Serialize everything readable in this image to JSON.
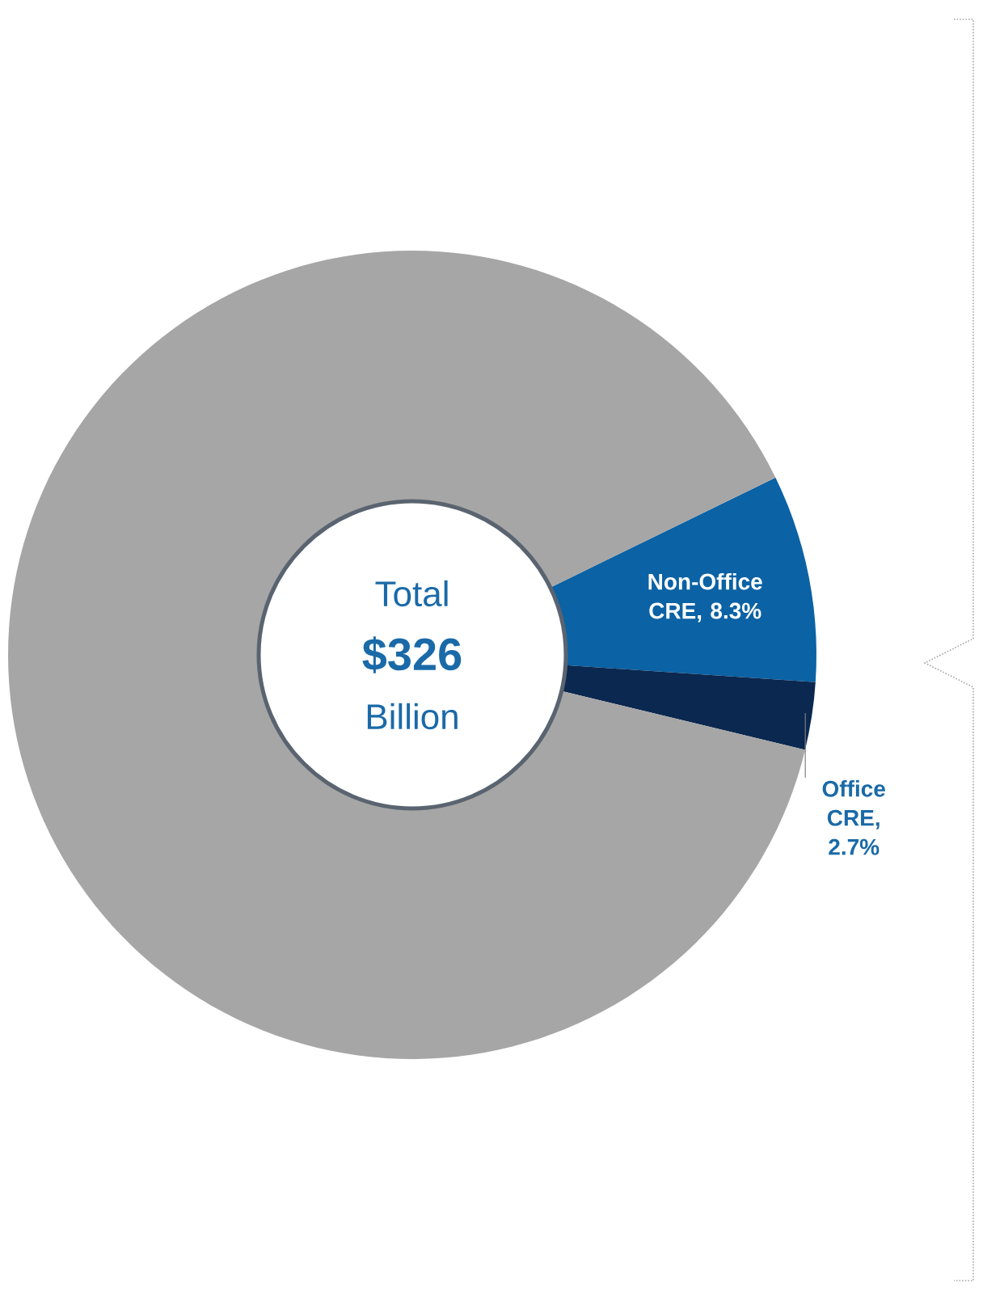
{
  "chart_data": {
    "type": "donut",
    "categories": [
      "Non-Office CRE, 8.3%",
      "Office CRE, 2.7%",
      null
    ],
    "values": [
      8.3,
      2.7,
      89
    ],
    "colors": [
      "#0b62a4",
      "#0a2850",
      "#a6a6a6"
    ],
    "annotations": [
      "Total",
      "$326",
      "Billion"
    ],
    "legend": false
  }
}
